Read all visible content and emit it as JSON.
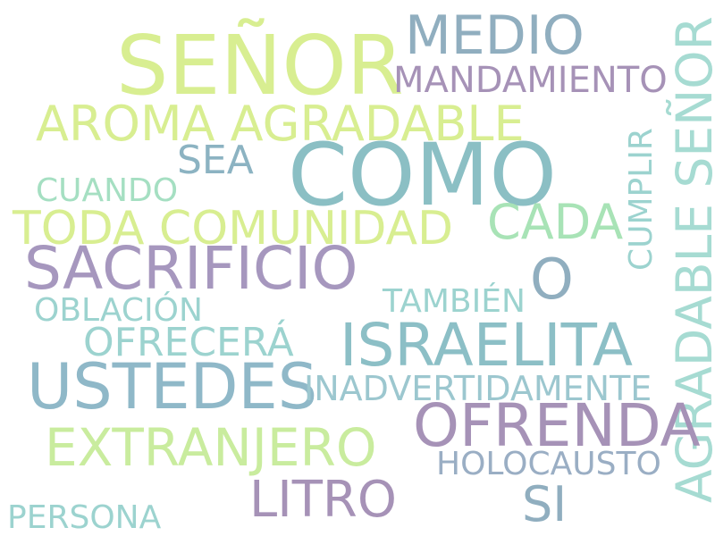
{
  "words": {
    "senor": {
      "text": "SEÑOR",
      "color": "#d8ee91"
    },
    "medio": {
      "text": "MEDIO",
      "color": "#90aebf"
    },
    "mandamiento": {
      "text": "MANDAMIENTO",
      "color": "#a692b7"
    },
    "aroma_agradable": {
      "text": "AROMA AGRADABLE",
      "color": "#d8ee91"
    },
    "sea": {
      "text": "SEA",
      "color": "#8cb3c2"
    },
    "como": {
      "text": "COMO",
      "color": "#8bbfc4"
    },
    "cumplir": {
      "text": "CUMPLIR",
      "color": "#9cd3cf"
    },
    "agradable_senor": {
      "text": "AGRADABLE SEÑOR",
      "color": "#a6dbd2"
    },
    "cuando": {
      "text": "CUANDO",
      "color": "#a5dfc2"
    },
    "toda_comunidad": {
      "text": "TODA COMUNIDAD",
      "color": "#d8ee91"
    },
    "cada": {
      "text": "CADA",
      "color": "#a8e3b6"
    },
    "sacrificio": {
      "text": "SACRIFICIO",
      "color": "#a697be"
    },
    "o": {
      "text": "O",
      "color": "#90aebf"
    },
    "oblacion": {
      "text": "OBLACIÓN",
      "color": "#9cd3cf"
    },
    "tambien": {
      "text": "TAMBIÉN",
      "color": "#9cd3cf"
    },
    "ofrecera": {
      "text": "OFRECERÁ",
      "color": "#9cd3cf"
    },
    "israelita": {
      "text": "ISRAELITA",
      "color": "#8cbfc6"
    },
    "ustedes": {
      "text": "USTEDES",
      "color": "#8fb8c8"
    },
    "inadvertidamente": {
      "text": "INADVERTIDAMENTE",
      "color": "#9cc7cf"
    },
    "ofrenda": {
      "text": "OFRENDA",
      "color": "#a692b7"
    },
    "extranjero": {
      "text": "EXTRANJERO",
      "color": "#c9ec9e"
    },
    "holocausto": {
      "text": "HOLOCAUSTO",
      "color": "#9aaec4"
    },
    "litro": {
      "text": "LITRO",
      "color": "#a692b7"
    },
    "si": {
      "text": "SI",
      "color": "#90aebf"
    },
    "persona": {
      "text": "PERSONA",
      "color": "#9cd3cf"
    }
  }
}
